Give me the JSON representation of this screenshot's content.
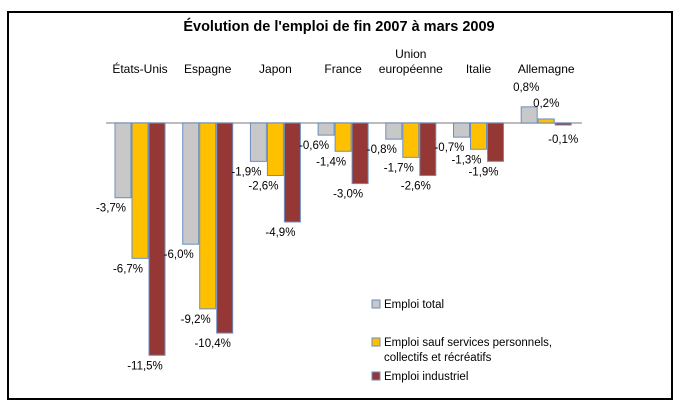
{
  "chart_data": {
    "type": "bar",
    "title": "Évolution de l'emploi de fin 2007 à mars 2009",
    "xlabel": "",
    "ylabel": "",
    "categories": [
      [
        "États-Unis"
      ],
      [
        "Espagne"
      ],
      [
        "Japon"
      ],
      [
        "France"
      ],
      [
        "Union",
        "européenne"
      ],
      [
        "Italie"
      ],
      [
        "Allemagne"
      ]
    ],
    "category_names": [
      "États-Unis",
      "Espagne",
      "Japon",
      "France",
      "Union européenne",
      "Italie",
      "Allemagne"
    ],
    "series": [
      {
        "name": "Emploi total",
        "color": "#c8c8c8",
        "values": [
          -3.7,
          -6.0,
          -1.9,
          -0.6,
          -0.8,
          -0.7,
          0.8
        ],
        "labels": [
          "-3,7%",
          "-6,0%",
          "-1,9%",
          "-0,6%",
          "-0,8%",
          "-0,7%",
          "0,8%"
        ]
      },
      {
        "name": "Emploi sauf services personnels, collectifs et récréatifs",
        "legend_lines": [
          "Emploi sauf services personnels,",
          "collectifs et récréatifs"
        ],
        "color": "#ffc000",
        "values": [
          -6.7,
          -9.2,
          -2.6,
          -1.4,
          -1.7,
          -1.3,
          0.2
        ],
        "labels": [
          "-6,7%",
          "-9,2%",
          "-2,6%",
          "-1,4%",
          "-1,7%",
          "-1,3%",
          "0,2%"
        ]
      },
      {
        "name": "Emploi industriel",
        "color": "#953735",
        "values": [
          -11.5,
          -10.4,
          -4.9,
          -3.0,
          -2.6,
          -1.9,
          -0.1
        ],
        "labels": [
          "-11,5%",
          "-10,4%",
          "-4,9%",
          "-3,0%",
          "-2,6%",
          "-1,9%",
          "-0,1%"
        ]
      }
    ],
    "ylim": [
      -12,
      1
    ],
    "grid": false,
    "axis_visible": false,
    "legend_position": "bottom-right",
    "bar_outline_color": "#6c8ebf",
    "baseline_color": "#a6a6a6"
  }
}
